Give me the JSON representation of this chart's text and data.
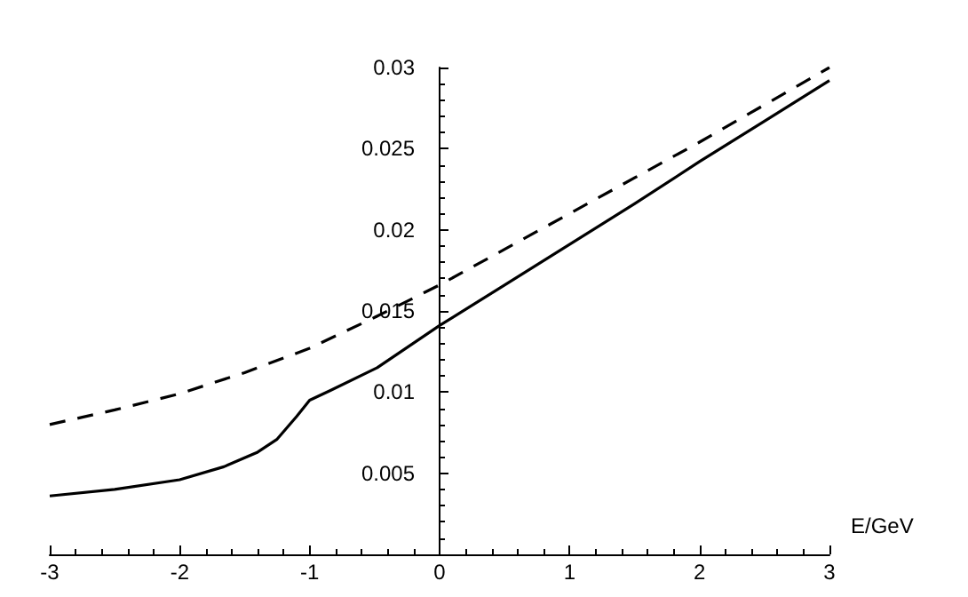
{
  "chart_data": {
    "type": "line",
    "xlabel": "E/GeV",
    "xlim": [
      -3,
      3
    ],
    "xticks": [
      -3,
      -2,
      -1,
      0,
      1,
      2,
      3
    ],
    "ylim": [
      0,
      0.03
    ],
    "yticks": [
      0.005,
      0.01,
      0.015,
      0.02,
      0.025,
      0.03
    ],
    "marker": "none",
    "series": [
      {
        "color": "#000000",
        "line_style": "solid",
        "x": [
          -3,
          -2.5,
          -2,
          -1.66,
          -1.4,
          -1.25,
          -1.1,
          -1,
          -0.84,
          -0.48,
          0,
          0.16,
          0.5,
          1,
          1.5,
          2,
          2.5,
          3
        ],
        "values": [
          0.0036,
          0.004,
          0.0046,
          0.0054,
          0.0063,
          0.0071,
          0.0085,
          0.0095,
          0.0101,
          0.0115,
          0.0141,
          0.0149,
          0.0166,
          0.0191,
          0.0216,
          0.0242,
          0.0267,
          0.0292
        ]
      },
      {
        "color": "#000000",
        "line_style": "dashed",
        "x": [
          -3,
          -2.5,
          -2,
          -1.5,
          -1,
          -0.5,
          0,
          0.5,
          1,
          1.5,
          2,
          2.5,
          3
        ],
        "values": [
          0.008,
          0.0089,
          0.0099,
          0.0112,
          0.0127,
          0.0146,
          0.0166,
          0.0188,
          0.021,
          0.0232,
          0.0254,
          0.0277,
          0.03
        ]
      }
    ]
  }
}
